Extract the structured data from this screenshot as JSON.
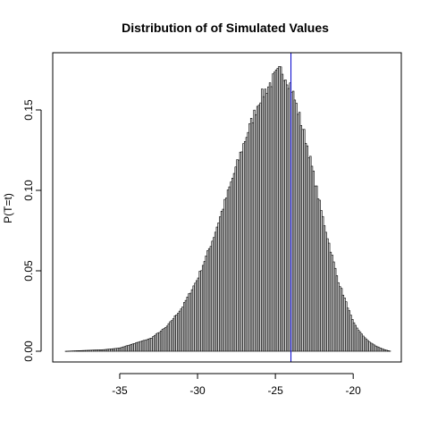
{
  "chart_data": {
    "type": "bar",
    "title": "Distribution of of Simulated Values",
    "xlabel": "",
    "ylabel": "P(T=t)",
    "xlim": [
      -39,
      -17
    ],
    "ylim": [
      0,
      0.18
    ],
    "x_ticks": [
      -35,
      -30,
      -25,
      -20
    ],
    "y_ticks": [
      0.0,
      0.05,
      0.1,
      0.15
    ],
    "y_tick_labels": [
      "0.00",
      "0.05",
      "0.10",
      "0.15"
    ],
    "bin_width": 0.1,
    "bar_fill": "#d3d3d3",
    "bar_edge": "#000000",
    "reference_line": {
      "x": -24.0,
      "color": "#0000cd"
    },
    "histogram_profile": {
      "x_range": [
        -38.5,
        -17.6
      ],
      "peak_x": -24.6,
      "peak_y": 0.175,
      "values_x": [
        -38.5,
        -36,
        -35,
        -34,
        -33,
        -32,
        -31,
        -30,
        -29,
        -28,
        -27,
        -26,
        -25,
        -24.6,
        -24,
        -23,
        -22,
        -21,
        -20,
        -19.5,
        -19,
        -18.5,
        -18,
        -17.6
      ],
      "values_y": [
        0.0,
        0.001,
        0.002,
        0.005,
        0.008,
        0.015,
        0.027,
        0.045,
        0.07,
        0.1,
        0.13,
        0.157,
        0.171,
        0.175,
        0.165,
        0.13,
        0.085,
        0.045,
        0.018,
        0.011,
        0.006,
        0.003,
        0.001,
        0.0
      ]
    }
  }
}
